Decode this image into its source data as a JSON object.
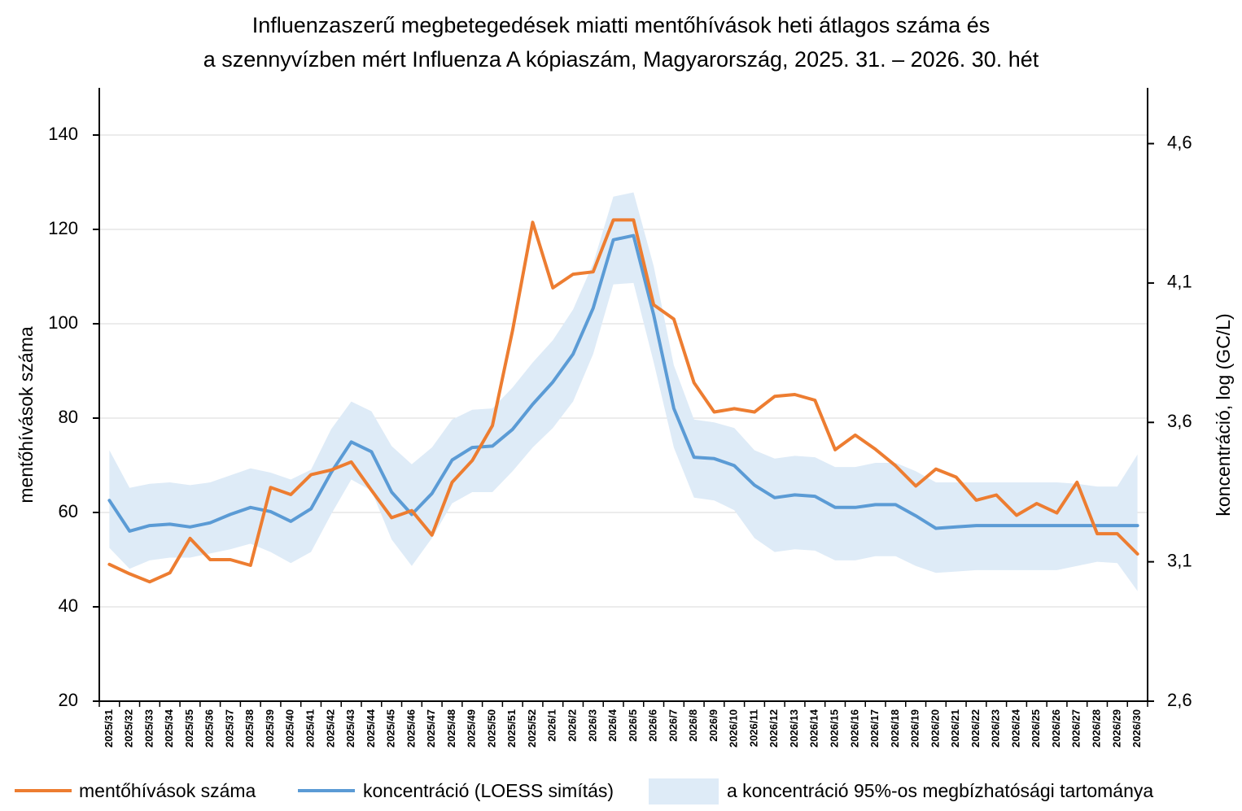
{
  "chart_data": {
    "type": "line",
    "title": [
      "Influenzaszerű megbetegedések miatti mentőhívások heti átlagos száma és",
      "a szennyvízben mért Influenza A kópiaszám, Magyarország, 2025. 31. – 2026. 30. hét"
    ],
    "ylabel_left": "mentőhívások száma",
    "ylabel_right": "koncentráció, log (GC/L)",
    "ylim_left": [
      20,
      150
    ],
    "yticks_left": [
      20,
      40,
      60,
      80,
      100,
      120,
      140
    ],
    "ytick_labels_left": [
      "20",
      "40",
      "60",
      "80",
      "100",
      "120",
      "140"
    ],
    "ylim_right": [
      2.6,
      4.8
    ],
    "yticks_right": [
      2.6,
      3.1,
      3.6,
      4.1,
      4.6
    ],
    "ytick_labels_right": [
      "2,6",
      "3,1",
      "3,6",
      "4,1",
      "4,6"
    ],
    "grid": true,
    "legend_position": "bottom",
    "x": [
      "2025/31",
      "2025/32",
      "2025/33",
      "2025/34",
      "2025/35",
      "2025/36",
      "2025/37",
      "2025/38",
      "2025/39",
      "2025/40",
      "2025/41",
      "2025/42",
      "2025/43",
      "2025/44",
      "2025/45",
      "2025/46",
      "2025/47",
      "2025/48",
      "2025/49",
      "2025/50",
      "2025/51",
      "2025/52",
      "2026/1",
      "2026/2",
      "2026/3",
      "2026/4",
      "2026/5",
      "2026/6",
      "2026/7",
      "2026/8",
      "2026/9",
      "2026/10",
      "2026/11",
      "2026/12",
      "2026/13",
      "2026/14",
      "2026/15",
      "2026/16",
      "2026/17",
      "2026/18",
      "2026/19",
      "2026/20",
      "2026/21",
      "2026/22",
      "2026/23",
      "2026/24",
      "2026/25",
      "2026/26",
      "2026/27",
      "2026/28",
      "2026/29",
      "2026/30"
    ],
    "series": [
      {
        "name": "mentőhívások száma",
        "axis": "left",
        "color": "#ED7D31",
        "values": [
          49,
          47,
          45.3,
          47.2,
          54.5,
          50,
          50,
          48.8,
          65.3,
          63.8,
          68,
          69,
          70.7,
          64.7,
          58.9,
          60.4,
          55.2,
          66.4,
          71,
          78.4,
          98.6,
          121.5,
          107.6,
          110.5,
          111,
          122,
          122,
          104,
          101,
          87.5,
          81.3,
          82,
          81.3,
          84.6,
          85,
          83.8,
          73.3,
          76.4,
          73.4,
          69.9,
          65.6,
          69.2,
          67.5,
          62.6,
          63.7,
          59.4,
          61.9,
          59.9,
          66.4,
          55.5,
          55.5,
          51.2
        ]
      },
      {
        "name": "koncentráció (LOESS simítás)",
        "axis": "right",
        "color": "#5B9BD5",
        "values": [
          3.32,
          3.21,
          3.23,
          3.235,
          3.225,
          3.24,
          3.27,
          3.295,
          3.28,
          3.245,
          3.29,
          3.42,
          3.53,
          3.495,
          3.35,
          3.27,
          3.345,
          3.465,
          3.51,
          3.515,
          3.575,
          3.665,
          3.745,
          3.845,
          4.01,
          4.255,
          4.27,
          3.985,
          3.65,
          3.475,
          3.47,
          3.445,
          3.375,
          3.33,
          3.34,
          3.335,
          3.295,
          3.295,
          3.305,
          3.305,
          3.265,
          3.22,
          3.225,
          3.23,
          3.23,
          3.23,
          3.23,
          3.23,
          3.23,
          3.23,
          3.23,
          3.23
        ]
      },
      {
        "name": "a koncentráció 95%-os megbízhatósági tartománya",
        "axis": "right",
        "color": "#DEEBF7",
        "type": "band",
        "lower": [
          3.15,
          3.075,
          3.105,
          3.115,
          3.115,
          3.13,
          3.145,
          3.165,
          3.135,
          3.095,
          3.135,
          3.27,
          3.395,
          3.355,
          3.18,
          3.085,
          3.185,
          3.31,
          3.35,
          3.35,
          3.425,
          3.51,
          3.58,
          3.675,
          3.845,
          4.095,
          4.1,
          3.815,
          3.51,
          3.33,
          3.32,
          3.285,
          3.185,
          3.135,
          3.145,
          3.14,
          3.105,
          3.105,
          3.12,
          3.12,
          3.085,
          3.06,
          3.065,
          3.07,
          3.07,
          3.07,
          3.07,
          3.07,
          3.085,
          3.1,
          3.095,
          2.995
        ],
        "upper": [
          3.5,
          3.365,
          3.38,
          3.385,
          3.375,
          3.385,
          3.41,
          3.435,
          3.42,
          3.395,
          3.43,
          3.575,
          3.675,
          3.64,
          3.515,
          3.45,
          3.51,
          3.61,
          3.645,
          3.65,
          3.725,
          3.815,
          3.895,
          4.005,
          4.17,
          4.41,
          4.425,
          4.16,
          3.805,
          3.61,
          3.6,
          3.58,
          3.5,
          3.47,
          3.48,
          3.475,
          3.44,
          3.44,
          3.455,
          3.455,
          3.425,
          3.385,
          3.385,
          3.385,
          3.385,
          3.385,
          3.385,
          3.385,
          3.38,
          3.37,
          3.37,
          3.485
        ]
      }
    ]
  }
}
